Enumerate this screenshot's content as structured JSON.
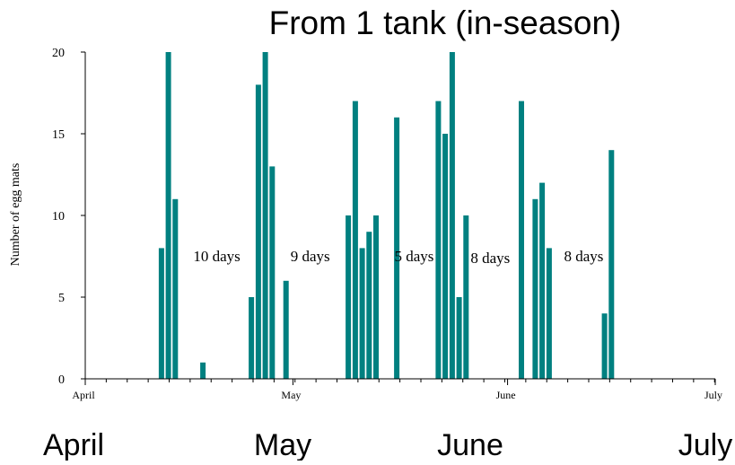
{
  "chart_data": {
    "type": "bar",
    "title": "From 1 tank (in-season)",
    "ylabel": "Number of egg mats",
    "xlabel": "",
    "ylim": [
      0,
      20
    ],
    "yticks": [
      0,
      5,
      10,
      15,
      20
    ],
    "x_unit": "days from April 1",
    "xlim": [
      0,
      91
    ],
    "x_tick_labels": [
      {
        "label": "April",
        "day": 0
      },
      {
        "label": "May",
        "day": 30
      },
      {
        "label": "June",
        "day": 61
      },
      {
        "label": "July",
        "day": 91
      }
    ],
    "bar_color": "#008080",
    "bars": [
      {
        "day": 11,
        "value": 8
      },
      {
        "day": 12,
        "value": 20
      },
      {
        "day": 13,
        "value": 11
      },
      {
        "day": 17,
        "value": 1
      },
      {
        "day": 24,
        "value": 5
      },
      {
        "day": 25,
        "value": 18
      },
      {
        "day": 26,
        "value": 20
      },
      {
        "day": 27,
        "value": 13
      },
      {
        "day": 29,
        "value": 6
      },
      {
        "day": 38,
        "value": 10
      },
      {
        "day": 39,
        "value": 17
      },
      {
        "day": 40,
        "value": 8
      },
      {
        "day": 41,
        "value": 9
      },
      {
        "day": 42,
        "value": 10
      },
      {
        "day": 45,
        "value": 16
      },
      {
        "day": 51,
        "value": 17
      },
      {
        "day": 52,
        "value": 15
      },
      {
        "day": 53,
        "value": 20
      },
      {
        "day": 54,
        "value": 5
      },
      {
        "day": 55,
        "value": 10
      },
      {
        "day": 63,
        "value": 17
      },
      {
        "day": 65,
        "value": 11
      },
      {
        "day": 66,
        "value": 12
      },
      {
        "day": 67,
        "value": 8
      },
      {
        "day": 75,
        "value": 4
      },
      {
        "day": 76,
        "value": 14
      }
    ],
    "annotations": [
      {
        "text": "10 days",
        "day": 19,
        "y": 7.2
      },
      {
        "text": "9 days",
        "day": 32.5,
        "y": 7.2
      },
      {
        "text": "5 days",
        "day": 47.5,
        "y": 7.2
      },
      {
        "text": "8 days",
        "day": 58.5,
        "y": 7.1
      },
      {
        "text": "8 days",
        "day": 72,
        "y": 7.2
      }
    ],
    "month_labels": [
      "April",
      "May",
      "June",
      "July"
    ]
  }
}
